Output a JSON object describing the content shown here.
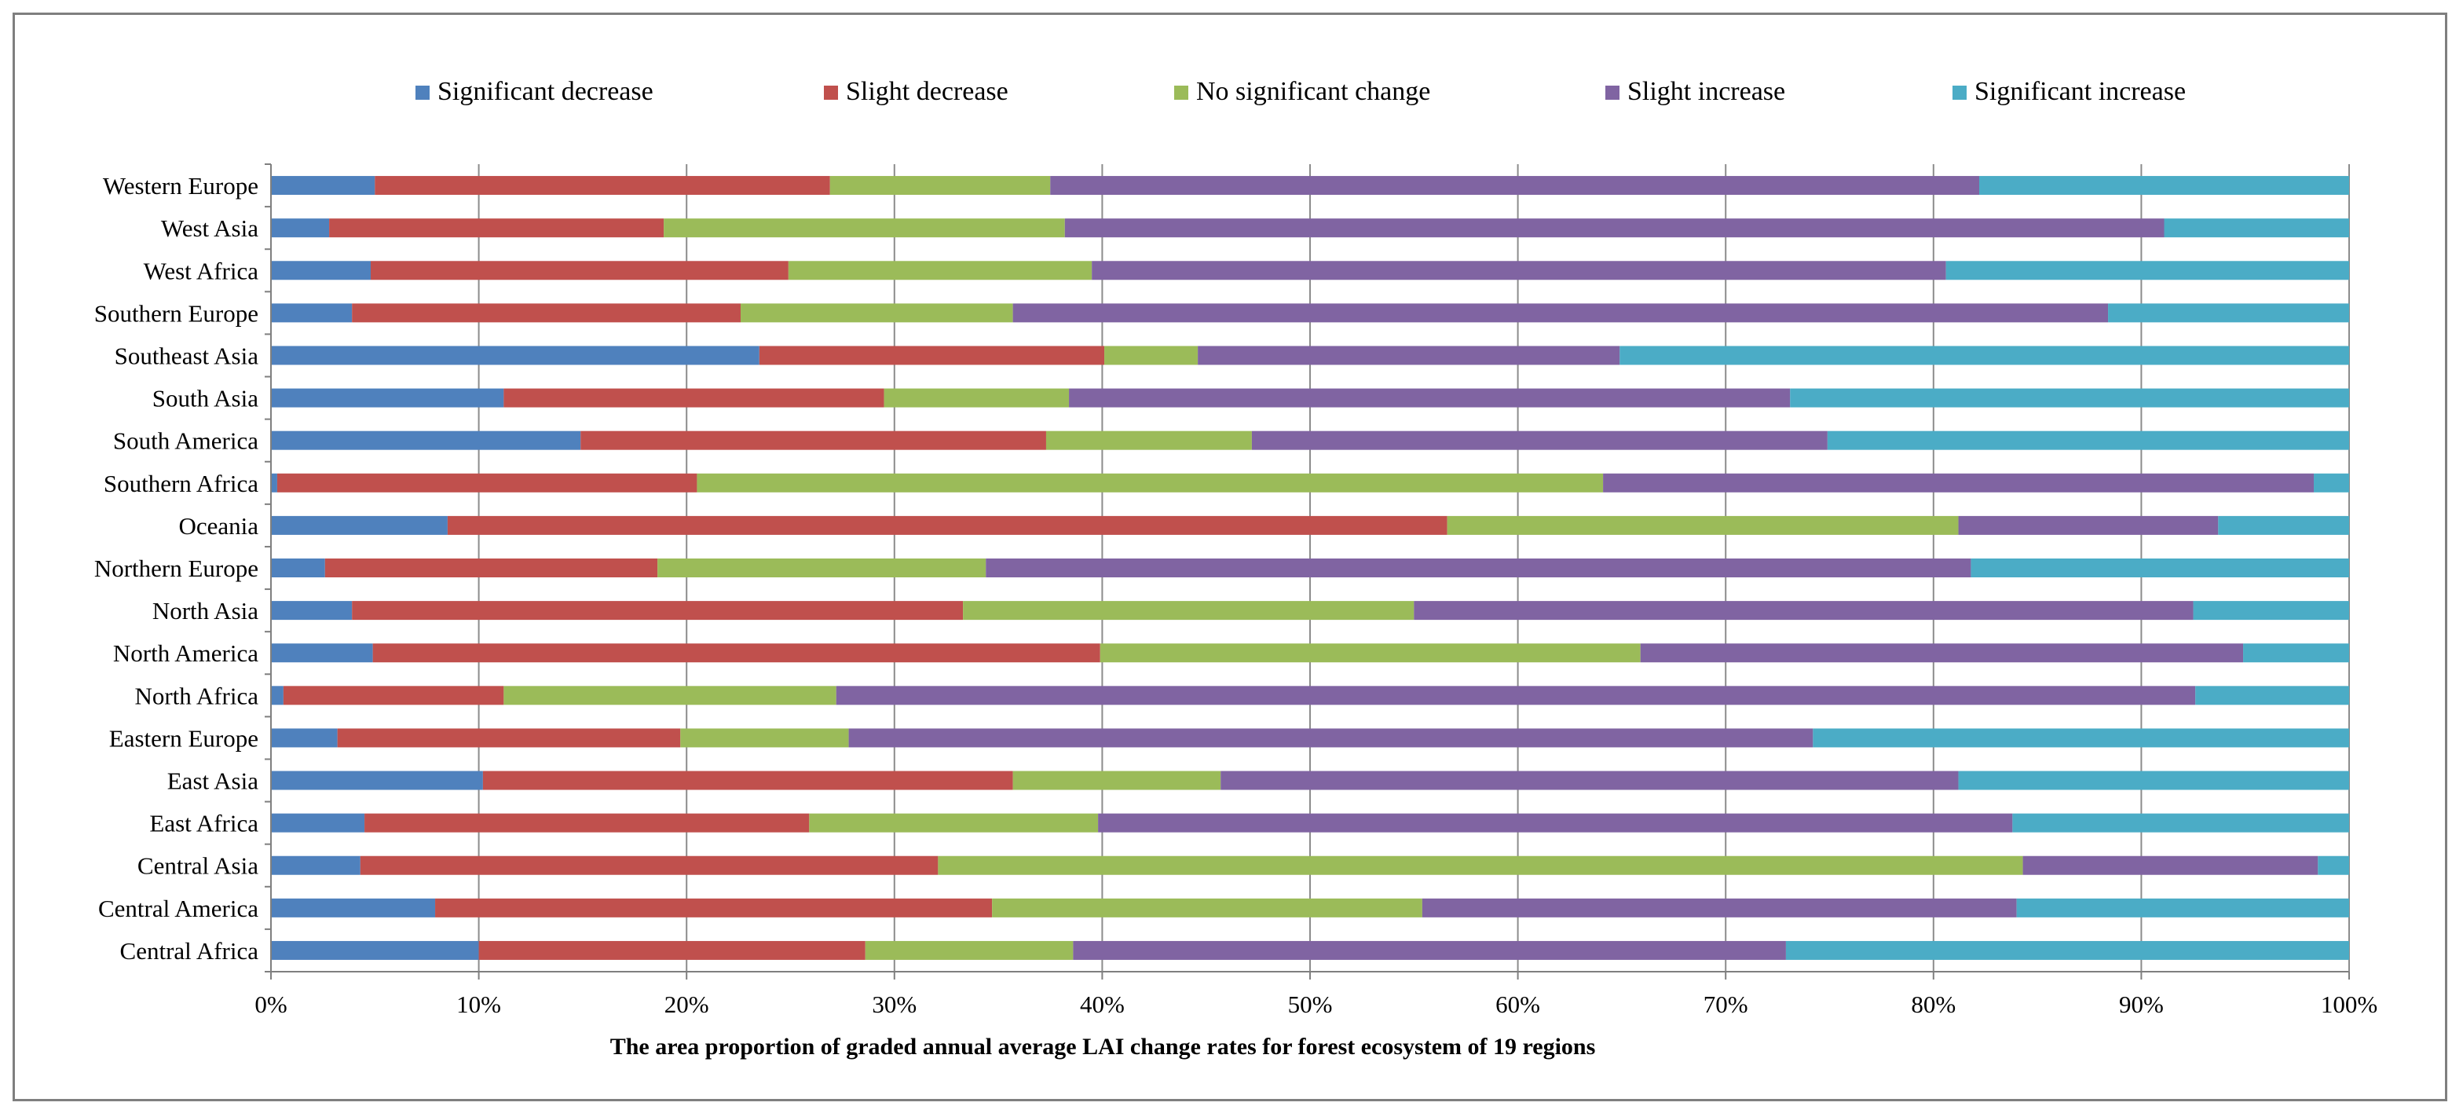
{
  "chart_data": {
    "type": "bar",
    "orientation": "horizontal",
    "stacked": true,
    "percent": true,
    "xlabel": "The area proportion  of graded annual average LAI change rates for forest  ecosystem of 19 regions",
    "ylabel": "",
    "xlim": [
      0,
      100
    ],
    "x_ticks": [
      "0%",
      "10%",
      "20%",
      "30%",
      "40%",
      "50%",
      "60%",
      "70%",
      "80%",
      "90%",
      "100%"
    ],
    "grid": true,
    "legend_position": "top",
    "categories": [
      "Western Europe",
      "West Asia",
      "West Africa",
      "Southern Europe",
      "Southeast Asia",
      "South Asia",
      "South America",
      "Southern Africa",
      "Oceania",
      "Northern Europe",
      "North Asia",
      "North America",
      "North Africa",
      "Eastern Europe",
      "East Asia",
      "East Africa",
      "Central Asia",
      "Central America",
      "Central Africa"
    ],
    "series": [
      {
        "name": "Significant decrease",
        "color": "#4f81bd",
        "values": [
          5.0,
          2.8,
          4.8,
          3.9,
          23.5,
          11.2,
          14.9,
          0.3,
          8.5,
          2.6,
          3.9,
          4.9,
          0.6,
          3.2,
          10.2,
          4.5,
          4.3,
          7.9,
          10.0
        ]
      },
      {
        "name": "Slight decrease",
        "color": "#c0504d",
        "values": [
          21.9,
          16.1,
          20.1,
          18.7,
          16.6,
          18.3,
          22.4,
          20.2,
          48.1,
          16.0,
          29.4,
          35.0,
          10.6,
          16.5,
          25.5,
          21.4,
          27.8,
          26.8,
          18.6
        ]
      },
      {
        "name": "No significant change",
        "color": "#9bbb59",
        "values": [
          10.6,
          19.3,
          14.6,
          13.1,
          4.5,
          8.9,
          9.9,
          43.6,
          24.6,
          15.8,
          21.7,
          26.0,
          16.0,
          8.1,
          10.0,
          13.9,
          52.2,
          20.7,
          10.0
        ]
      },
      {
        "name": "Slight increase",
        "color": "#8064a2",
        "values": [
          44.7,
          52.9,
          41.1,
          52.7,
          20.3,
          34.7,
          27.7,
          34.2,
          12.5,
          47.4,
          37.5,
          29.0,
          65.4,
          46.4,
          35.5,
          44.0,
          14.2,
          28.6,
          34.3
        ]
      },
      {
        "name": "Significant increase",
        "color": "#4bacc6",
        "values": [
          17.8,
          8.9,
          19.4,
          11.6,
          35.1,
          26.9,
          25.1,
          1.7,
          6.3,
          18.2,
          7.5,
          5.1,
          7.4,
          25.8,
          18.8,
          16.2,
          1.5,
          16.0,
          27.1
        ]
      }
    ]
  }
}
